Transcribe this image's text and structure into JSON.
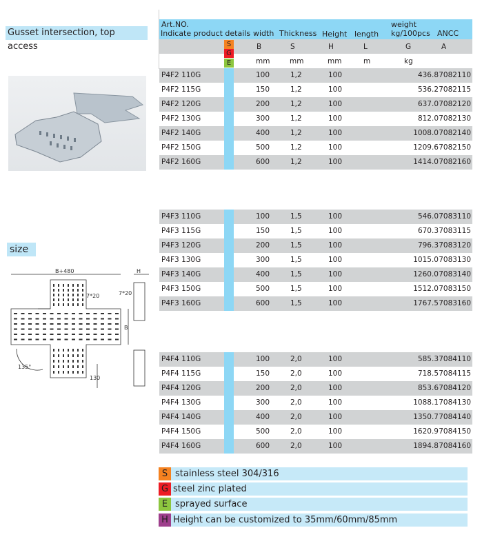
{
  "title": "Gusset intersection, top access",
  "size_label": "size",
  "colors": {
    "header": "#8dd7f5",
    "S": "#f58220",
    "G": "#ed1c24",
    "E": "#8dc63f",
    "H": "#9e3f8c"
  },
  "header": {
    "art1": "Art.NO.",
    "art2": "Indicate product details",
    "width": "width",
    "thickness": "Thickness",
    "height": "Height",
    "length": "length",
    "weight1": "weight",
    "weight2": "kg/100pcs",
    "ancc": "ANCC"
  },
  "symbols": {
    "b": "B",
    "s": "S",
    "h": "H",
    "l": "L",
    "g": "G",
    "a": "A"
  },
  "units": {
    "b": "mm",
    "s": "mm",
    "h": "mm",
    "l": "m",
    "g": "kg"
  },
  "badges": [
    "S",
    "G",
    "E"
  ],
  "groups": [
    [
      [
        "P4F2 110G",
        "100",
        "1,2",
        "100",
        "436.8",
        "7082110"
      ],
      [
        "P4F2 115G",
        "150",
        "1,2",
        "100",
        "536.2",
        "7082115"
      ],
      [
        "P4F2 120G",
        "200",
        "1,2",
        "100",
        "637.0",
        "7082120"
      ],
      [
        "P4F2 130G",
        "300",
        "1,2",
        "100",
        "812.0",
        "7082130"
      ],
      [
        "P4F2 140G",
        "400",
        "1,2",
        "100",
        "1008.0",
        "7082140"
      ],
      [
        "P4F2 150G",
        "500",
        "1,2",
        "100",
        "1209.6",
        "7082150"
      ],
      [
        "P4F2 160G",
        "600",
        "1,2",
        "100",
        "1414.0",
        "7082160"
      ]
    ],
    [
      [
        "P4F3 110G",
        "100",
        "1,5",
        "100",
        "546.0",
        "7083110"
      ],
      [
        "P4F3 115G",
        "150",
        "1,5",
        "100",
        "670.3",
        "7083115"
      ],
      [
        "P4F3 120G",
        "200",
        "1,5",
        "100",
        "796.3",
        "7083120"
      ],
      [
        "P4F3 130G",
        "300",
        "1,5",
        "100",
        "1015.0",
        "7083130"
      ],
      [
        "P4F3 140G",
        "400",
        "1,5",
        "100",
        "1260.0",
        "7083140"
      ],
      [
        "P4F3 150G",
        "500",
        "1,5",
        "100",
        "1512.0",
        "7083150"
      ],
      [
        "P4F3 160G",
        "600",
        "1,5",
        "100",
        "1767.5",
        "7083160"
      ]
    ],
    [
      [
        "P4F4 110G",
        "100",
        "2,0",
        "100",
        "585.3",
        "7084110"
      ],
      [
        "P4F4 115G",
        "150",
        "2,0",
        "100",
        "718.5",
        "7084115"
      ],
      [
        "P4F4 120G",
        "200",
        "2,0",
        "100",
        "853.6",
        "7084120"
      ],
      [
        "P4F4 130G",
        "300",
        "2,0",
        "100",
        "1088.1",
        "7084130"
      ],
      [
        "P4F4 140G",
        "400",
        "2,0",
        "100",
        "1350.7",
        "7084140"
      ],
      [
        "P4F4 150G",
        "500",
        "2,0",
        "100",
        "1620.9",
        "7084150"
      ],
      [
        "P4F4 160G",
        "600",
        "2,0",
        "100",
        "1894.8",
        "7084160"
      ]
    ]
  ],
  "drawing": {
    "top": "B+480",
    "side": "H",
    "slot1": "7*20",
    "slot2": "7*20",
    "b": "B",
    "angle": "135°",
    "dim": "130"
  },
  "legend": [
    {
      "key": "S",
      "text": "stainless steel 304/316"
    },
    {
      "key": "G",
      "text": "steel zinc plated"
    },
    {
      "key": "E",
      "text": "sprayed surface"
    },
    {
      "key": "H",
      "text": "Height can be customized to 35mm/60mm/85mm"
    }
  ]
}
